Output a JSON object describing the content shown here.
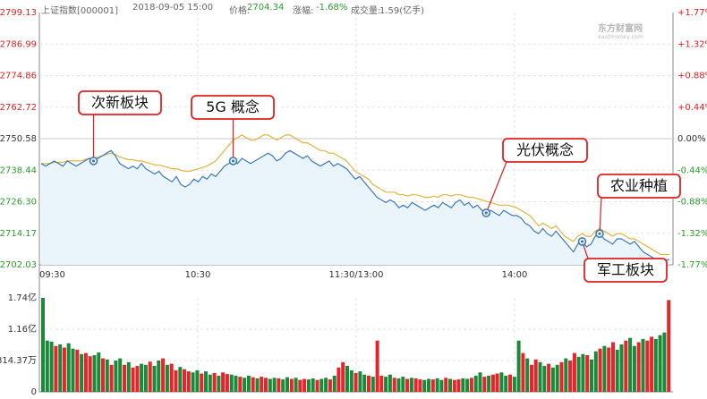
{
  "header": {
    "index_name": "上证指数[000001]",
    "datetime": "2018-09-05 15:00",
    "price_label": "价格:",
    "price_value": "2704.34",
    "change_label": "涨幅:",
    "change_value": "-1.68%",
    "volume_label": "成交量:",
    "volume_value": "1.59(亿手)"
  },
  "watermark": "东方财富网",
  "watermark_sub": "eastmoney.com",
  "colors": {
    "price_line": "#3d78b8",
    "avg_line": "#e0b440",
    "area_fill": "#eaf4fb",
    "up": "#e8242a",
    "down": "#1a8a3a",
    "red_text": "#e02020",
    "green_text": "#2a9b2a",
    "callout_border": "#e02020"
  },
  "chart_data": [
    {
      "type": "line",
      "title": "",
      "y_left_ticks": [
        "2799.13",
        "2786.99",
        "2774.86",
        "2762.72",
        "2750.58",
        "2738.44",
        "2726.30",
        "2714.17",
        "2702.03"
      ],
      "y_right_ticks": [
        "+1.77%",
        "+1.32%",
        "+0.88%",
        "+0.44%",
        "0.00%",
        "-0.44%",
        "-0.88%",
        "-1.32%",
        "-1.77%"
      ],
      "x_ticks": [
        "09:30",
        "10:30",
        "11:30/13:00",
        "14:00"
      ],
      "ylim": [
        2702.03,
        2799.13
      ],
      "series": [
        {
          "role": "price",
          "values": [
            2741,
            2740,
            2741,
            2742,
            2741,
            2740,
            2742,
            2741,
            2740,
            2741,
            2742,
            2743,
            2742,
            2743,
            2744,
            2745,
            2746,
            2744,
            2741,
            2740,
            2739,
            2740,
            2739,
            2741,
            2739,
            2738,
            2737,
            2738,
            2736,
            2735,
            2734,
            2736,
            2733,
            2732,
            2733,
            2735,
            2734,
            2736,
            2735,
            2737,
            2736,
            2738,
            2740,
            2741,
            2742,
            2741,
            2743,
            2742,
            2741,
            2742,
            2743,
            2744,
            2745,
            2744,
            2742,
            2743,
            2745,
            2746,
            2745,
            2744,
            2743,
            2744,
            2742,
            2741,
            2740,
            2741,
            2742,
            2740,
            2741,
            2740,
            2739,
            2737,
            2735,
            2736,
            2734,
            2732,
            2730,
            2728,
            2727,
            2726,
            2727,
            2726,
            2724,
            2725,
            2724,
            2726,
            2725,
            2724,
            2723,
            2724,
            2725,
            2724,
            2726,
            2725,
            2724,
            2726,
            2727,
            2725,
            2726,
            2724,
            2725,
            2723,
            2722,
            2723,
            2722,
            2721,
            2723,
            2722,
            2721,
            2721,
            2720,
            2718,
            2717,
            2715,
            2714,
            2716,
            2714,
            2713,
            2715,
            2713,
            2711,
            2709,
            2707,
            2710,
            2711,
            2709,
            2710,
            2713,
            2714,
            2712,
            2711,
            2710,
            2712,
            2712,
            2711,
            2710,
            2711,
            2709,
            2707,
            2706,
            2705,
            2704,
            2703,
            2704,
            2704
          ]
        },
        {
          "role": "average",
          "values": [
            2741,
            2741,
            2741,
            2741.5,
            2741.5,
            2741.5,
            2742,
            2742,
            2742,
            2742,
            2742.5,
            2743,
            2743,
            2743.5,
            2744,
            2744.5,
            2745,
            2744.5,
            2743.5,
            2743,
            2742.5,
            2742.5,
            2742,
            2742,
            2741.5,
            2741,
            2740.5,
            2740.5,
            2740,
            2739.5,
            2739,
            2739,
            2738.5,
            2738,
            2738,
            2738.5,
            2739,
            2739.5,
            2740,
            2741,
            2742,
            2744,
            2746,
            2748,
            2750,
            2751,
            2752,
            2751,
            2750,
            2750,
            2751,
            2752,
            2752,
            2751,
            2750,
            2751,
            2752,
            2752,
            2751,
            2750,
            2749,
            2749,
            2748,
            2747,
            2746,
            2746,
            2745,
            2745,
            2744,
            2743,
            2742,
            2740,
            2738,
            2737,
            2736,
            2735,
            2733,
            2732,
            2731,
            2730,
            2730,
            2730,
            2729,
            2729,
            2728.5,
            2729,
            2729,
            2728.5,
            2728,
            2728,
            2728.5,
            2728,
            2729,
            2729,
            2728.5,
            2729,
            2729,
            2728.5,
            2728,
            2728,
            2727.5,
            2727,
            2726.5,
            2726,
            2725.5,
            2725,
            2725,
            2725,
            2724.5,
            2724,
            2723,
            2722,
            2721,
            2719,
            2717,
            2718,
            2717,
            2716,
            2717,
            2715,
            2713,
            2712,
            2711,
            2713,
            2714,
            2713,
            2713,
            2715,
            2716,
            2715,
            2714,
            2713,
            2714,
            2714,
            2713,
            2712,
            2712,
            2711,
            2710,
            2709,
            2708,
            2707,
            2706,
            2706,
            2706
          ]
        }
      ],
      "annotations": [
        {
          "label": "次新板块",
          "index": 12
        },
        {
          "label": "5G 概念",
          "index": 44
        },
        {
          "label": "光伏概念",
          "index": 102
        },
        {
          "label": "农业种植",
          "index": 128
        },
        {
          "label": "军工板块",
          "index": 124
        }
      ]
    },
    {
      "type": "bar",
      "title": "",
      "y_ticks": [
        "1.74亿",
        "1.16亿",
        "814.37万",
        "0"
      ],
      "ylim": [
        0,
        1.74
      ],
      "values": [
        1.74,
        0.95,
        0.93,
        0.85,
        0.88,
        0.82,
        0.9,
        0.8,
        0.78,
        0.7,
        0.72,
        0.66,
        0.68,
        0.73,
        0.62,
        0.6,
        0.5,
        0.58,
        0.62,
        0.5,
        0.55,
        0.45,
        0.48,
        0.52,
        0.5,
        0.56,
        0.48,
        0.58,
        0.62,
        0.5,
        0.52,
        0.4,
        0.46,
        0.42,
        0.38,
        0.36,
        0.4,
        0.34,
        0.38,
        0.32,
        0.35,
        0.3,
        0.36,
        0.33,
        0.32,
        0.3,
        0.28,
        0.26,
        0.3,
        0.27,
        0.25,
        0.28,
        0.26,
        0.24,
        0.26,
        0.25,
        0.23,
        0.27,
        0.24,
        0.26,
        0.22,
        0.24,
        0.23,
        0.25,
        0.22,
        0.24,
        0.26,
        0.23,
        0.3,
        0.45,
        0.55,
        0.48,
        0.4,
        0.35,
        0.38,
        0.32,
        0.3,
        0.28,
        0.95,
        0.3,
        0.28,
        0.32,
        0.26,
        0.25,
        0.28,
        0.24,
        0.26,
        0.25,
        0.23,
        0.22,
        0.24,
        0.23,
        0.25,
        0.22,
        0.26,
        0.24,
        0.22,
        0.23,
        0.25,
        0.24,
        0.26,
        0.3,
        0.36,
        0.28,
        0.3,
        0.32,
        0.34,
        0.36,
        0.3,
        0.32,
        0.28,
        0.95,
        0.72,
        0.62,
        0.5,
        0.6,
        0.55,
        0.48,
        0.52,
        0.45,
        0.5,
        0.55,
        0.62,
        0.58,
        0.72,
        0.65,
        0.7,
        0.68,
        0.6,
        0.75,
        0.8,
        0.85,
        0.82,
        0.92,
        0.78,
        0.88,
        0.95,
        1.0,
        0.85,
        0.92,
        0.98,
        0.95,
        1.02,
        0.98,
        1.05,
        1.1,
        1.7
      ],
      "directions": "dddududduduuddududduduuddudduduuduuddudduduuddudduduuddudduduuddudduduuddudduduuddudduduuddudduduuddudduduuddudduduuddudduduuddudduduuddudduduudddud"
    }
  ]
}
